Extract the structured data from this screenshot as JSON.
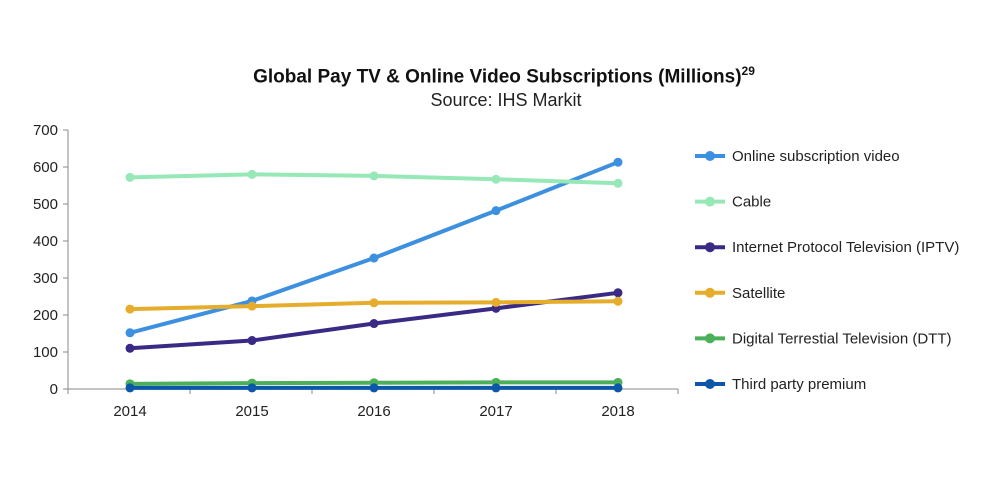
{
  "chart_data": {
    "type": "line",
    "title": "Global Pay TV & Online Video Subscriptions (Millions)",
    "title_superscript": "29",
    "subtitle": "Source: IHS Markit",
    "xlabel": "",
    "ylabel": "",
    "x": [
      "2014",
      "2015",
      "2016",
      "2017",
      "2018"
    ],
    "ylim": [
      0,
      700
    ],
    "yticks": [
      0,
      100,
      200,
      300,
      400,
      500,
      600,
      700
    ],
    "grid": false,
    "legend_position": "right",
    "series": [
      {
        "name": "Online subscription video",
        "color": "#3d8fe0",
        "values": [
          152,
          238,
          354,
          482,
          613
        ]
      },
      {
        "name": "Cable",
        "color": "#96e8b7",
        "values": [
          572,
          580,
          576,
          567,
          556
        ]
      },
      {
        "name": "Internet Protocol Television (IPTV)",
        "color": "#3a2a86",
        "values": [
          110,
          131,
          177,
          218,
          260
        ]
      },
      {
        "name": "Satellite",
        "color": "#e6ad2c",
        "values": [
          216,
          224,
          233,
          234,
          237
        ]
      },
      {
        "name": "Digital Terrestial Television (DTT)",
        "color": "#4caf5a",
        "values": [
          14,
          16,
          17,
          18,
          18
        ]
      },
      {
        "name": "Third party premium",
        "color": "#0d57a8",
        "values": [
          3,
          3,
          3,
          3,
          3
        ]
      }
    ]
  }
}
